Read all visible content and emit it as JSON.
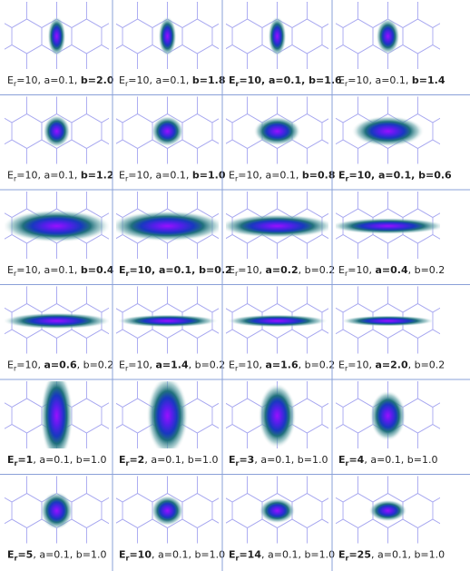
{
  "panels": [
    {
      "parts": [
        {
          "t": "E"
        },
        {
          "t": "r",
          "sub": true
        },
        {
          "t": "=10, a=0.1, "
        },
        {
          "t": "b=2.0",
          "bold": true
        }
      ]
    },
    {
      "parts": [
        {
          "t": "E"
        },
        {
          "t": "r",
          "sub": true
        },
        {
          "t": "=10, a=0.1, "
        },
        {
          "t": "b=1.8",
          "bold": true
        }
      ]
    },
    {
      "parts": [
        {
          "t": "E",
          "bold": true
        },
        {
          "t": "r",
          "sub": true,
          "bold": true
        },
        {
          "t": "=10, a=0.1, b=1.6",
          "bold": true
        }
      ]
    },
    {
      "parts": [
        {
          "t": "E"
        },
        {
          "t": "r",
          "sub": true
        },
        {
          "t": "=10, a=0.1, "
        },
        {
          "t": "b=1.4",
          "bold": true
        }
      ]
    },
    {
      "parts": [
        {
          "t": "E"
        },
        {
          "t": "r",
          "sub": true
        },
        {
          "t": "=10, a=0.1, "
        },
        {
          "t": "b=1.2",
          "bold": true
        }
      ]
    },
    {
      "parts": [
        {
          "t": "E"
        },
        {
          "t": "r",
          "sub": true
        },
        {
          "t": "=10, a=0.1, "
        },
        {
          "t": "b=1.0",
          "bold": true
        }
      ]
    },
    {
      "parts": [
        {
          "t": "E"
        },
        {
          "t": "r",
          "sub": true
        },
        {
          "t": "=10, a=0.1, "
        },
        {
          "t": "b=0.8",
          "bold": true
        }
      ]
    },
    {
      "parts": [
        {
          "t": "E",
          "bold": true
        },
        {
          "t": "r",
          "sub": true,
          "bold": true
        },
        {
          "t": "=10, a=0.1, b=0.6",
          "bold": true
        }
      ]
    },
    {
      "parts": [
        {
          "t": "E"
        },
        {
          "t": "r",
          "sub": true
        },
        {
          "t": "=10, a=0.1, "
        },
        {
          "t": "b=0.4",
          "bold": true
        }
      ]
    },
    {
      "parts": [
        {
          "t": "E",
          "bold": true
        },
        {
          "t": "r",
          "sub": true,
          "bold": true
        },
        {
          "t": "=10, a=0.1, b=0.2",
          "bold": true
        }
      ]
    },
    {
      "parts": [
        {
          "t": "E"
        },
        {
          "t": "r",
          "sub": true
        },
        {
          "t": "=10, "
        },
        {
          "t": "a=0.2",
          "bold": true
        },
        {
          "t": ", b=0.2"
        }
      ]
    },
    {
      "parts": [
        {
          "t": "E"
        },
        {
          "t": "r",
          "sub": true
        },
        {
          "t": "=10, "
        },
        {
          "t": "a=0.4",
          "bold": true
        },
        {
          "t": ", b=0.2"
        }
      ]
    },
    {
      "parts": [
        {
          "t": "E"
        },
        {
          "t": "r",
          "sub": true
        },
        {
          "t": "=10, "
        },
        {
          "t": "a=0.6",
          "bold": true
        },
        {
          "t": ", b=0.2"
        }
      ]
    },
    {
      "parts": [
        {
          "t": "E"
        },
        {
          "t": "r",
          "sub": true
        },
        {
          "t": "=10, "
        },
        {
          "t": "a=1.4",
          "bold": true
        },
        {
          "t": ", b=0.2"
        }
      ]
    },
    {
      "parts": [
        {
          "t": "E"
        },
        {
          "t": "r",
          "sub": true
        },
        {
          "t": "=10, "
        },
        {
          "t": "a=1.6",
          "bold": true
        },
        {
          "t": ", b=0.2"
        }
      ]
    },
    {
      "parts": [
        {
          "t": "E"
        },
        {
          "t": "r",
          "sub": true
        },
        {
          "t": "=10, "
        },
        {
          "t": "a=2.0",
          "bold": true
        },
        {
          "t": ", b=0.2"
        }
      ]
    },
    {
      "parts": [
        {
          "t": "E",
          "bold": true
        },
        {
          "t": "r",
          "sub": true,
          "bold": true
        },
        {
          "t": "=1",
          "bold": true
        },
        {
          "t": ", a=0.1, b=1.0"
        }
      ]
    },
    {
      "parts": [
        {
          "t": "E",
          "bold": true
        },
        {
          "t": "r",
          "sub": true,
          "bold": true
        },
        {
          "t": "=2",
          "bold": true
        },
        {
          "t": ", a=0.1, b=1.0"
        }
      ]
    },
    {
      "parts": [
        {
          "t": "E",
          "bold": true
        },
        {
          "t": "r",
          "sub": true,
          "bold": true
        },
        {
          "t": "=3",
          "bold": true
        },
        {
          "t": ", a=0.1, b=1.0"
        }
      ]
    },
    {
      "parts": [
        {
          "t": "E",
          "bold": true
        },
        {
          "t": "r",
          "sub": true,
          "bold": true
        },
        {
          "t": "=4",
          "bold": true
        },
        {
          "t": ", a=0.1, b=1.0"
        }
      ]
    },
    {
      "parts": [
        {
          "t": "E",
          "bold": true
        },
        {
          "t": "r",
          "sub": true,
          "bold": true
        },
        {
          "t": "=5",
          "bold": true
        },
        {
          "t": ", a=0.1, b=1.0"
        }
      ]
    },
    {
      "parts": [
        {
          "t": "E",
          "bold": true
        },
        {
          "t": "r",
          "sub": true,
          "bold": true
        },
        {
          "t": "=10",
          "bold": true
        },
        {
          "t": ", a=0.1, b=1.0"
        }
      ]
    },
    {
      "parts": [
        {
          "t": "E",
          "bold": true
        },
        {
          "t": "r",
          "sub": true,
          "bold": true
        },
        {
          "t": "=14",
          "bold": true
        },
        {
          "t": ", a=0.1, b=1.0"
        }
      ]
    },
    {
      "parts": [
        {
          "t": "E",
          "bold": true
        },
        {
          "t": "r",
          "sub": true,
          "bold": true
        },
        {
          "t": "=25",
          "bold": true
        },
        {
          "t": ", a=0.1, b=1.0"
        }
      ]
    }
  ]
}
